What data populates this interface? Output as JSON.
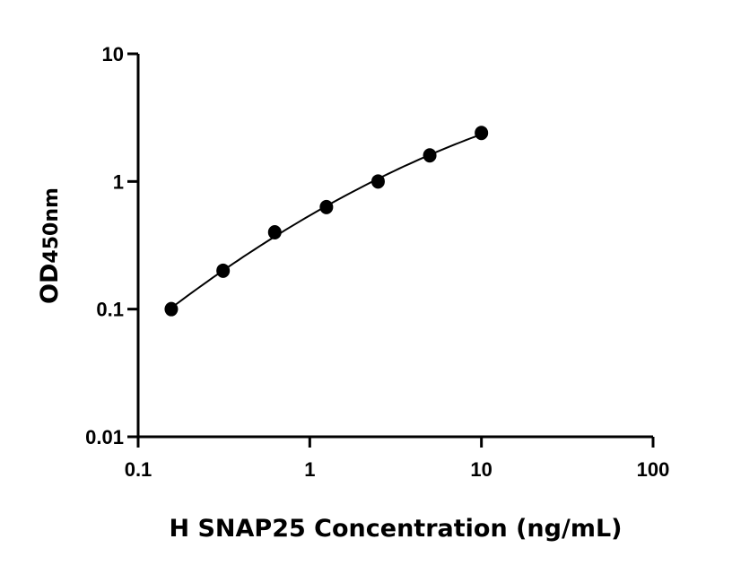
{
  "chart_data": {
    "type": "scatter",
    "title": "",
    "xlabel": "H SNAP25 Concentration (ng/mL)",
    "ylabel_main": "OD",
    "ylabel_sub": "450nm",
    "x_scale": "log",
    "y_scale": "log",
    "xlim": [
      0.1,
      100
    ],
    "ylim": [
      0.01,
      10
    ],
    "x_ticks": [
      0.1,
      1,
      10,
      100
    ],
    "x_tick_labels": [
      "0.1",
      "1",
      "10",
      "100"
    ],
    "y_ticks": [
      0.01,
      0.1,
      1,
      10
    ],
    "y_tick_labels": [
      "0.01",
      "0.1",
      "1",
      "10"
    ],
    "grid": false,
    "legend": "none",
    "fit_curve": true,
    "marker_color": "#000000",
    "series": [
      {
        "x": [
          0.156,
          0.3125,
          0.625,
          1.25,
          2.5,
          5,
          10
        ],
        "y": [
          0.1,
          0.2,
          0.4,
          0.63,
          1.0,
          1.6,
          2.4
        ]
      }
    ]
  }
}
